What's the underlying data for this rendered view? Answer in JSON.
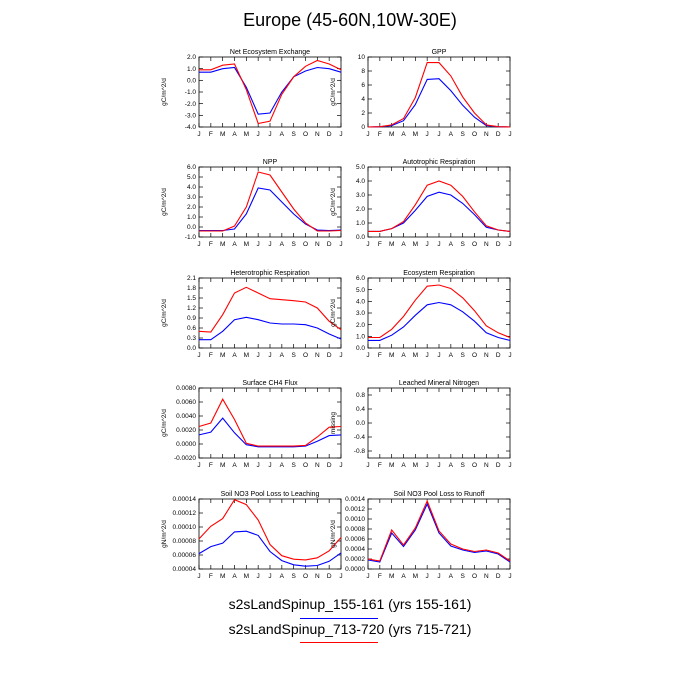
{
  "figure": {
    "title": "Europe (45-60N,10W-30E)",
    "legend": [
      {
        "label": "s2sLandSpinup_155-161 (yrs 155-161)",
        "color": "#0000ff"
      },
      {
        "label": "s2sLandSpinup_713-720 (yrs 715-721)",
        "color": "#ff0000"
      }
    ]
  },
  "chart_data": [
    {
      "type": "line",
      "title": "Net Ecosystem Exchange",
      "ylabel": "gC/m^2/d",
      "categories": [
        "J",
        "F",
        "M",
        "A",
        "M",
        "J",
        "J",
        "A",
        "S",
        "O",
        "N",
        "D",
        "J"
      ],
      "ylim": [
        -4.0,
        2.0
      ],
      "yticks": [
        -4.0,
        -3.0,
        -2.0,
        -1.0,
        0.0,
        1.0,
        2.0
      ],
      "ydec": 1,
      "series": [
        {
          "color": "#0000ff",
          "values": [
            0.7,
            0.7,
            1.0,
            1.1,
            -0.6,
            -2.9,
            -2.8,
            -1.0,
            0.3,
            0.8,
            1.1,
            1.0,
            0.7
          ]
        },
        {
          "color": "#ff0000",
          "values": [
            0.9,
            0.9,
            1.3,
            1.4,
            -0.8,
            -3.7,
            -3.5,
            -1.2,
            0.3,
            1.2,
            1.7,
            1.4,
            0.9
          ]
        }
      ]
    },
    {
      "type": "line",
      "title": "GPP",
      "ylabel": "gC/m^2/d",
      "categories": [
        "J",
        "F",
        "M",
        "A",
        "M",
        "J",
        "J",
        "A",
        "S",
        "O",
        "N",
        "D",
        "J"
      ],
      "ylim": [
        0,
        10
      ],
      "yticks": [
        0,
        2,
        4,
        6,
        8,
        10
      ],
      "ydec": 0,
      "series": [
        {
          "color": "#0000ff",
          "values": [
            0.0,
            0.05,
            0.2,
            0.9,
            3.2,
            6.8,
            6.9,
            5.2,
            3.1,
            1.4,
            0.2,
            0.05,
            0.0
          ]
        },
        {
          "color": "#ff0000",
          "values": [
            0.0,
            0.05,
            0.3,
            1.2,
            4.2,
            9.2,
            9.2,
            7.3,
            4.3,
            2.0,
            0.3,
            0.05,
            0.0
          ]
        }
      ]
    },
    {
      "type": "line",
      "title": "NPP",
      "ylabel": "gC/m^2/d",
      "categories": [
        "J",
        "F",
        "M",
        "A",
        "M",
        "J",
        "J",
        "A",
        "S",
        "O",
        "N",
        "D",
        "J"
      ],
      "ylim": [
        -1.0,
        6.0
      ],
      "yticks": [
        -1.0,
        0.0,
        1.0,
        2.0,
        3.0,
        4.0,
        5.0,
        6.0
      ],
      "ydec": 1,
      "series": [
        {
          "color": "#0000ff",
          "values": [
            -0.35,
            -0.35,
            -0.35,
            -0.2,
            1.3,
            3.9,
            3.7,
            2.5,
            1.3,
            0.3,
            -0.3,
            -0.35,
            -0.3
          ]
        },
        {
          "color": "#ff0000",
          "values": [
            -0.4,
            -0.4,
            -0.4,
            0.1,
            2.0,
            5.5,
            5.2,
            3.5,
            1.8,
            0.4,
            -0.4,
            -0.4,
            -0.35
          ]
        }
      ]
    },
    {
      "type": "line",
      "title": "Autotrophic Respiration",
      "ylabel": "gC/m^2/d",
      "categories": [
        "J",
        "F",
        "M",
        "A",
        "M",
        "J",
        "J",
        "A",
        "S",
        "O",
        "N",
        "D",
        "J"
      ],
      "ylim": [
        0.0,
        5.0
      ],
      "yticks": [
        0.0,
        1.0,
        2.0,
        3.0,
        4.0,
        5.0
      ],
      "ydec": 1,
      "series": [
        {
          "color": "#0000ff",
          "values": [
            0.4,
            0.4,
            0.6,
            1.0,
            1.9,
            2.9,
            3.2,
            3.0,
            2.4,
            1.6,
            0.7,
            0.5,
            0.4
          ]
        },
        {
          "color": "#ff0000",
          "values": [
            0.4,
            0.4,
            0.6,
            1.1,
            2.3,
            3.7,
            4.0,
            3.7,
            2.9,
            1.8,
            0.8,
            0.5,
            0.4
          ]
        }
      ]
    },
    {
      "type": "line",
      "title": "Heterotrophic Respiration",
      "ylabel": "gC/m^2/d",
      "categories": [
        "J",
        "F",
        "M",
        "A",
        "M",
        "J",
        "J",
        "A",
        "S",
        "O",
        "N",
        "D",
        "J"
      ],
      "ylim": [
        0.0,
        2.1
      ],
      "yticks": [
        0.0,
        0.3,
        0.6,
        0.9,
        1.2,
        1.5,
        1.8,
        2.1
      ],
      "ydec": 1,
      "series": [
        {
          "color": "#0000ff",
          "values": [
            0.25,
            0.25,
            0.5,
            0.85,
            0.92,
            0.85,
            0.75,
            0.72,
            0.72,
            0.7,
            0.6,
            0.42,
            0.27
          ]
        },
        {
          "color": "#ff0000",
          "values": [
            0.5,
            0.48,
            1.0,
            1.65,
            1.82,
            1.65,
            1.48,
            1.45,
            1.42,
            1.38,
            1.2,
            0.8,
            0.55
          ]
        }
      ]
    },
    {
      "type": "line",
      "title": "Ecosystem Respiration",
      "ylabel": "gC/m^2/d",
      "categories": [
        "J",
        "F",
        "M",
        "A",
        "M",
        "J",
        "J",
        "A",
        "S",
        "O",
        "N",
        "D",
        "J"
      ],
      "ylim": [
        0.0,
        6.0
      ],
      "yticks": [
        0.0,
        1.0,
        2.0,
        3.0,
        4.0,
        5.0,
        6.0
      ],
      "ydec": 1,
      "series": [
        {
          "color": "#0000ff",
          "values": [
            0.65,
            0.65,
            1.1,
            1.8,
            2.8,
            3.7,
            3.9,
            3.7,
            3.1,
            2.3,
            1.3,
            0.9,
            0.65
          ]
        },
        {
          "color": "#ff0000",
          "values": [
            0.9,
            0.9,
            1.6,
            2.7,
            4.1,
            5.3,
            5.4,
            5.1,
            4.3,
            3.2,
            1.9,
            1.3,
            0.9
          ]
        }
      ]
    },
    {
      "type": "line",
      "title": "Surface CH4 Flux",
      "ylabel": "gC/m^2/d",
      "categories": [
        "J",
        "F",
        "M",
        "A",
        "M",
        "J",
        "J",
        "A",
        "S",
        "O",
        "N",
        "D",
        "J"
      ],
      "ylim": [
        -0.002,
        0.008
      ],
      "yticks": [
        -0.002,
        0.0,
        0.002,
        0.004,
        0.006,
        0.008
      ],
      "ydec": 4,
      "series": [
        {
          "color": "#0000ff",
          "values": [
            0.0013,
            0.0017,
            0.0037,
            0.0016,
            -0.0001,
            -0.0004,
            -0.0004,
            -0.0004,
            -0.0004,
            -0.0003,
            0.0004,
            0.0012,
            0.0013
          ]
        },
        {
          "color": "#ff0000",
          "values": [
            0.0025,
            0.003,
            0.0064,
            0.0035,
            0.0001,
            -0.0003,
            -0.0003,
            -0.0003,
            -0.0003,
            -0.0002,
            0.001,
            0.0024,
            0.0025
          ]
        }
      ]
    },
    {
      "type": "line",
      "title": "Leached Mineral Nitrogen",
      "ylabel": "missing",
      "categories": [
        "J",
        "F",
        "M",
        "A",
        "M",
        "J",
        "J",
        "A",
        "S",
        "O",
        "N",
        "D",
        "J"
      ],
      "ylim": [
        -1.0,
        1.0
      ],
      "yticks": [
        -0.8,
        -0.4,
        0.0,
        0.4,
        0.8
      ],
      "ydec": 1,
      "series": []
    },
    {
      "type": "line",
      "title": "Soil NO3 Pool Loss to Leaching",
      "ylabel": "gN/m^2/d",
      "categories": [
        "J",
        "F",
        "M",
        "A",
        "M",
        "J",
        "J",
        "A",
        "S",
        "O",
        "N",
        "D",
        "J"
      ],
      "ylim": [
        4e-05,
        0.00014
      ],
      "yticks": [
        4e-05,
        6e-05,
        8e-05,
        0.0001,
        0.00012,
        0.00014
      ],
      "ydec": 5,
      "series": [
        {
          "color": "#0000ff",
          "values": [
            6.2e-05,
            7.2e-05,
            7.7e-05,
            9.3e-05,
            9.4e-05,
            8.8e-05,
            6.5e-05,
            5.2e-05,
            4.6e-05,
            4.4e-05,
            4.5e-05,
            5.1e-05,
            6.3e-05
          ]
        },
        {
          "color": "#ff0000",
          "values": [
            8.3e-05,
            0.000101,
            0.000112,
            0.000139,
            0.000132,
            0.00011,
            7.5e-05,
            5.9e-05,
            5.4e-05,
            5.3e-05,
            5.6e-05,
            6.6e-05,
            8.5e-05
          ]
        }
      ]
    },
    {
      "type": "line",
      "title": "Soil NO3 Pool Loss to Runoff",
      "ylabel": "gN/m^2/d",
      "categories": [
        "J",
        "F",
        "M",
        "A",
        "M",
        "J",
        "J",
        "A",
        "S",
        "O",
        "N",
        "D",
        "J"
      ],
      "ylim": [
        0.0,
        0.0014
      ],
      "yticks": [
        0.0,
        0.0002,
        0.0004,
        0.0006,
        0.0008,
        0.001,
        0.0012,
        0.0014
      ],
      "ydec": 4,
      "series": [
        {
          "color": "#0000ff",
          "values": [
            0.00018,
            0.00014,
            0.00072,
            0.00045,
            0.00078,
            0.0013,
            0.00072,
            0.00046,
            0.00038,
            0.00033,
            0.00036,
            0.0003,
            0.00014
          ]
        },
        {
          "color": "#ff0000",
          "values": [
            0.0002,
            0.00016,
            0.00078,
            0.00048,
            0.00082,
            0.00136,
            0.00076,
            0.0005,
            0.0004,
            0.00035,
            0.00038,
            0.00032,
            0.00016
          ]
        }
      ]
    }
  ]
}
